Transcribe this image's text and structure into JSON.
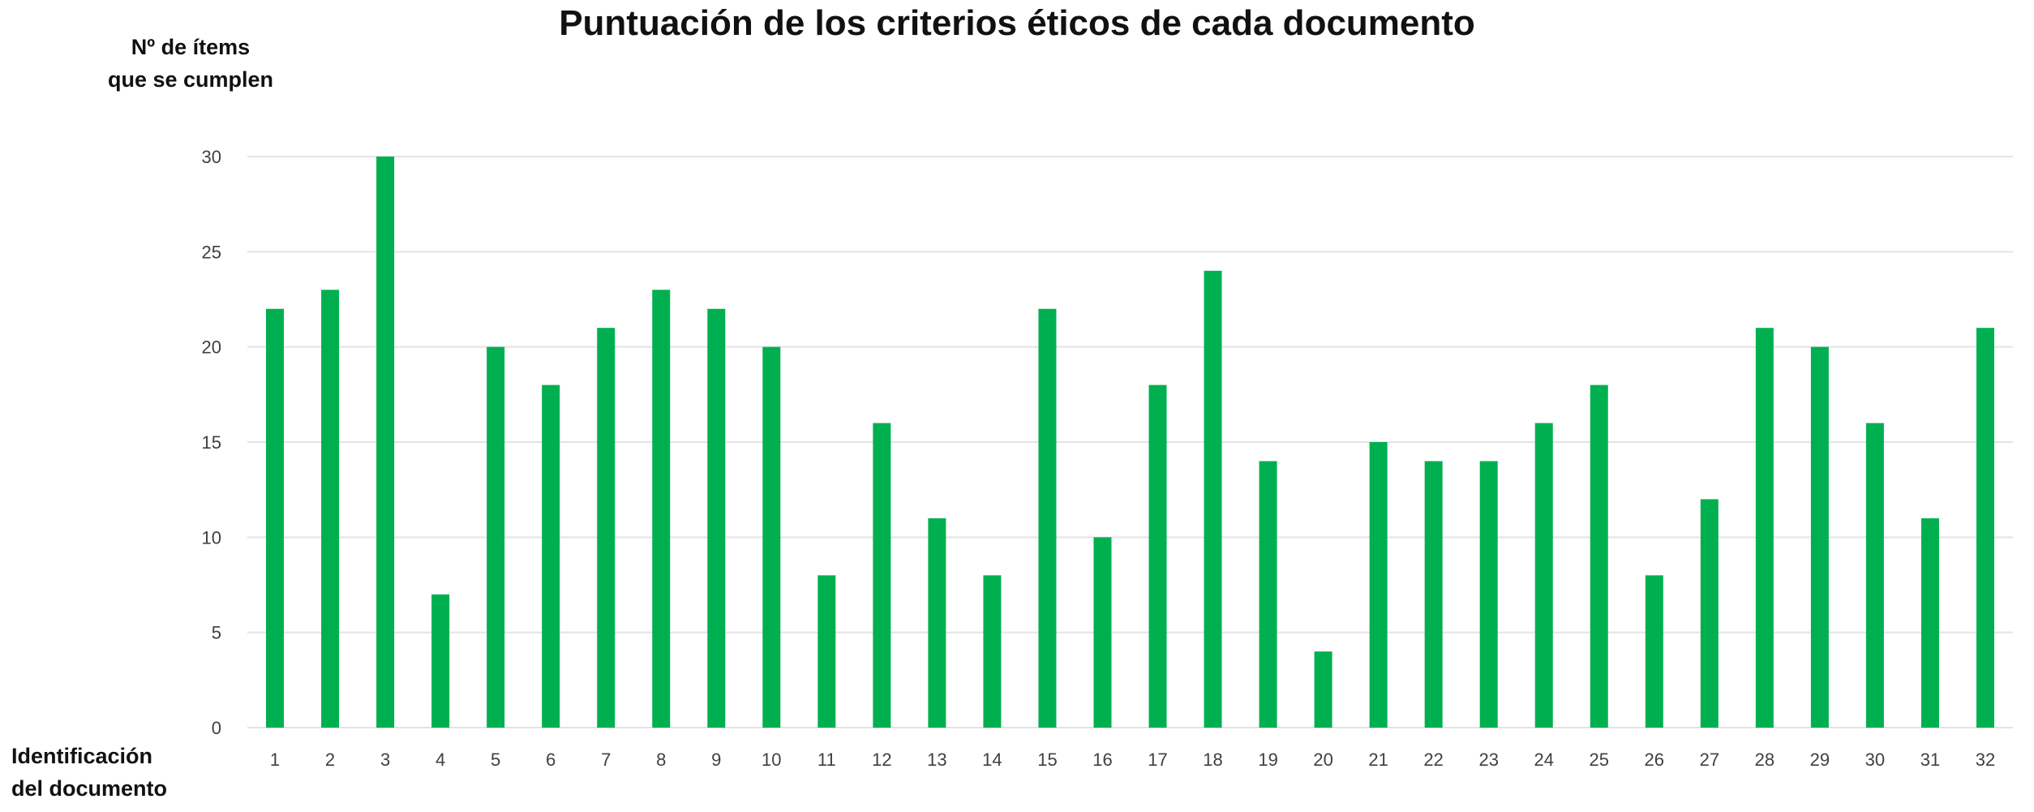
{
  "chart_data": {
    "type": "bar",
    "title": "Puntuación de los criterios éticos de cada documento",
    "ylabel_lines": [
      "Nº de ítems",
      "que se cumplen"
    ],
    "xlabel_lines": [
      "Identificación",
      "del documento"
    ],
    "categories": [
      "1",
      "2",
      "3",
      "4",
      "5",
      "6",
      "7",
      "8",
      "9",
      "10",
      "11",
      "12",
      "13",
      "14",
      "15",
      "16",
      "17",
      "18",
      "19",
      "20",
      "21",
      "22",
      "23",
      "24",
      "25",
      "26",
      "27",
      "28",
      "29",
      "30",
      "31",
      "32"
    ],
    "values": [
      22,
      23,
      30,
      7,
      20,
      18,
      21,
      23,
      22,
      20,
      8,
      16,
      11,
      8,
      22,
      10,
      18,
      24,
      14,
      4,
      15,
      14,
      14,
      16,
      18,
      8,
      12,
      21,
      20,
      16,
      11,
      21
    ],
    "ylim": [
      0,
      30
    ],
    "yticks": [
      0,
      5,
      10,
      15,
      20,
      25,
      30
    ],
    "grid": true,
    "legend": "none",
    "bar_color": "#00b050",
    "grid_color": "#e3e3e3"
  }
}
